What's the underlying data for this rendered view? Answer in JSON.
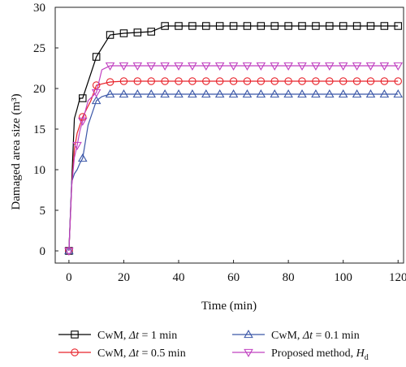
{
  "chart_data": {
    "type": "line",
    "title": "",
    "xlabel": "Time (min)",
    "ylabel": "Damaged area size (m³)",
    "xlim": [
      -5,
      122
    ],
    "ylim": [
      -1.5,
      30
    ],
    "xticks": [
      0,
      20,
      40,
      60,
      80,
      100,
      120
    ],
    "yticks": [
      0,
      5,
      10,
      15,
      20,
      25,
      30
    ],
    "grid": false,
    "legend_placement": "below plot, two columns",
    "series": [
      {
        "name": "CwM, Δt = 1 min",
        "name_parts": [
          "CwM, ",
          "Δt",
          " = 1 min"
        ],
        "color": "#000000",
        "marker": "square",
        "x": [
          0,
          1,
          2,
          3,
          4,
          5,
          10,
          15,
          20,
          25,
          30,
          35,
          40,
          45,
          50,
          55,
          60,
          65,
          70,
          75,
          80,
          85,
          90,
          95,
          100,
          105,
          110,
          115,
          120
        ],
        "y": [
          0,
          8.5,
          16.3,
          17.5,
          18.8,
          18.8,
          23.9,
          26.6,
          26.8,
          26.9,
          27.0,
          27.7,
          27.7,
          27.7,
          27.7,
          27.7,
          27.7,
          27.7,
          27.7,
          27.7,
          27.7,
          27.7,
          27.7,
          27.7,
          27.7,
          27.7,
          27.7,
          27.7,
          27.7
        ],
        "marker_x": [
          0,
          5,
          10,
          15,
          20,
          25,
          30,
          35,
          40,
          45,
          50,
          55,
          60,
          65,
          70,
          75,
          80,
          85,
          90,
          95,
          100,
          105,
          110,
          115,
          120
        ],
        "marker_y": [
          0,
          18.8,
          23.9,
          26.6,
          26.8,
          26.9,
          27.0,
          27.7,
          27.7,
          27.7,
          27.7,
          27.7,
          27.7,
          27.7,
          27.7,
          27.7,
          27.7,
          27.7,
          27.7,
          27.7,
          27.7,
          27.7,
          27.7,
          27.7,
          27.7
        ]
      },
      {
        "name": "CwM, Δt = 0.5 min",
        "name_parts": [
          "CwM, ",
          "Δt",
          " = 0.5 min"
        ],
        "color": "#e8232b",
        "marker": "circle",
        "x": [
          0,
          1,
          2,
          3,
          5,
          8,
          10,
          15,
          20,
          25,
          30,
          35,
          40,
          45,
          50,
          55,
          60,
          65,
          70,
          75,
          80,
          85,
          90,
          95,
          100,
          105,
          110,
          115,
          120
        ],
        "y": [
          0,
          8.0,
          12.5,
          14.5,
          16.5,
          18.5,
          20.4,
          20.8,
          20.9,
          20.9,
          20.9,
          20.9,
          20.9,
          20.9,
          20.9,
          20.9,
          20.9,
          20.9,
          20.9,
          20.9,
          20.9,
          20.9,
          20.9,
          20.9,
          20.9,
          20.9,
          20.9,
          20.9,
          20.9
        ],
        "marker_x": [
          0,
          5,
          10,
          15,
          20,
          25,
          30,
          35,
          40,
          45,
          50,
          55,
          60,
          65,
          70,
          75,
          80,
          85,
          90,
          95,
          100,
          105,
          110,
          115,
          120
        ],
        "marker_y": [
          0,
          16.5,
          20.4,
          20.8,
          20.9,
          20.9,
          20.9,
          20.9,
          20.9,
          20.9,
          20.9,
          20.9,
          20.9,
          20.9,
          20.9,
          20.9,
          20.9,
          20.9,
          20.9,
          20.9,
          20.9,
          20.9,
          20.9,
          20.9,
          20.9
        ]
      },
      {
        "name": "CwM, Δt = 0.1 min",
        "name_parts": [
          "CwM, ",
          "Δt",
          " = 0.1 min"
        ],
        "color": "#3b57a8",
        "marker": "triangle-up",
        "x": [
          0,
          1,
          2,
          3,
          4,
          5,
          7,
          10,
          12,
          15,
          20,
          25,
          30,
          35,
          40,
          45,
          50,
          55,
          60,
          65,
          70,
          75,
          80,
          85,
          90,
          95,
          100,
          105,
          110,
          115,
          120
        ],
        "y": [
          0,
          8.5,
          9.5,
          10.0,
          10.8,
          11.4,
          15.5,
          18.5,
          19.0,
          19.3,
          19.3,
          19.3,
          19.3,
          19.3,
          19.3,
          19.3,
          19.3,
          19.3,
          19.3,
          19.3,
          19.3,
          19.3,
          19.3,
          19.3,
          19.3,
          19.3,
          19.3,
          19.3,
          19.3,
          19.3,
          19.3
        ],
        "marker_x": [
          0,
          5,
          10,
          15,
          20,
          25,
          30,
          35,
          40,
          45,
          50,
          55,
          60,
          65,
          70,
          75,
          80,
          85,
          90,
          95,
          100,
          105,
          110,
          115,
          120
        ],
        "marker_y": [
          0,
          11.4,
          18.5,
          19.3,
          19.3,
          19.3,
          19.3,
          19.3,
          19.3,
          19.3,
          19.3,
          19.3,
          19.3,
          19.3,
          19.3,
          19.3,
          19.3,
          19.3,
          19.3,
          19.3,
          19.3,
          19.3,
          19.3,
          19.3,
          19.3
        ]
      },
      {
        "name": "Proposed method, Hd",
        "name_parts": [
          "Proposed method, ",
          "H",
          "d"
        ],
        "color": "#c040c0",
        "marker": "triangle-down",
        "x": [
          0,
          1,
          2,
          3,
          4,
          5,
          7,
          10,
          12,
          15,
          20,
          25,
          30,
          35,
          40,
          45,
          50,
          55,
          60,
          65,
          70,
          75,
          80,
          85,
          90,
          95,
          100,
          105,
          110,
          115,
          120
        ],
        "y": [
          0,
          8.0,
          11.5,
          13.0,
          14.8,
          16.0,
          18.5,
          19.5,
          22.3,
          22.8,
          22.8,
          22.8,
          22.8,
          22.8,
          22.8,
          22.8,
          22.8,
          22.8,
          22.8,
          22.8,
          22.8,
          22.8,
          22.8,
          22.8,
          22.8,
          22.8,
          22.8,
          22.8,
          22.8,
          22.8,
          22.8
        ],
        "marker_x": [
          0,
          3,
          5,
          10,
          15,
          20,
          25,
          30,
          35,
          40,
          45,
          50,
          55,
          60,
          65,
          70,
          75,
          80,
          85,
          90,
          95,
          100,
          105,
          110,
          115,
          120
        ],
        "marker_y": [
          0,
          13.0,
          16.0,
          19.5,
          22.8,
          22.8,
          22.8,
          22.8,
          22.8,
          22.8,
          22.8,
          22.8,
          22.8,
          22.8,
          22.8,
          22.8,
          22.8,
          22.8,
          22.8,
          22.8,
          22.8,
          22.8,
          22.8,
          22.8,
          22.8,
          22.8
        ]
      }
    ]
  }
}
